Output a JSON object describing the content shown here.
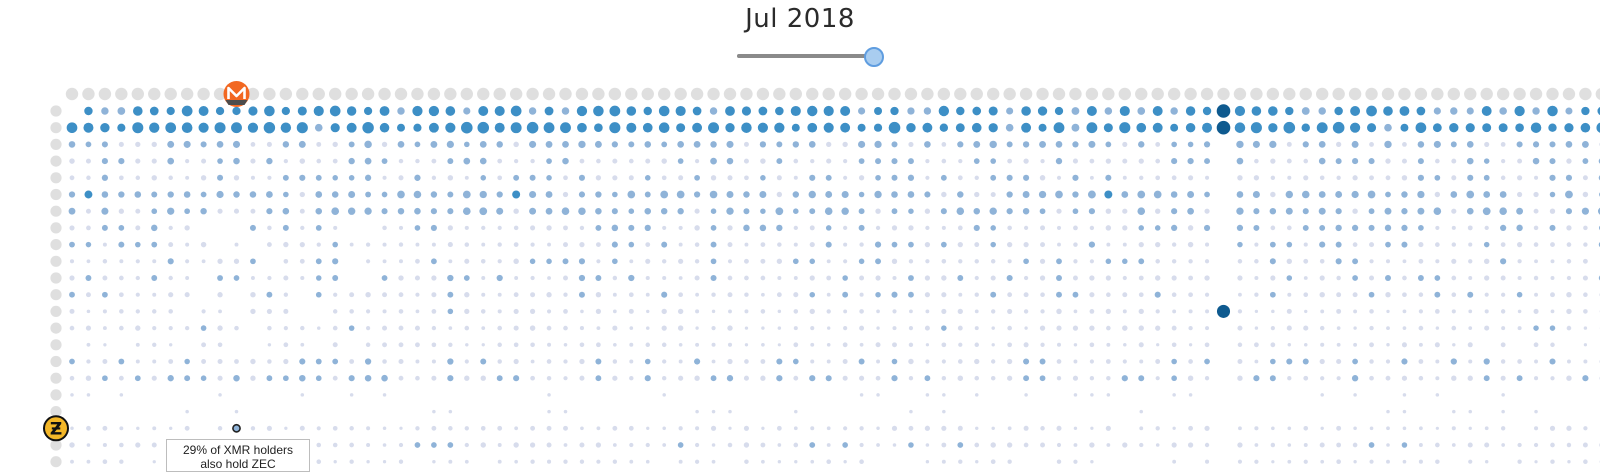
{
  "title": "Jul 2018",
  "slider": {
    "value_fraction": 1.0
  },
  "colors": {
    "background": "#ffffff",
    "low": "#d7dcec",
    "mid": "#8fb3d8",
    "high": "#3d8fc6",
    "max": "#0e5a8f",
    "highlight_xmr": "#f26822",
    "highlight_zec": "#f4b728",
    "icon_gray": "#c4c4c4"
  },
  "tooltip": {
    "line1": "29% of XMR holders",
    "line2": "also hold ZEC"
  },
  "chart_data": {
    "type": "heatmap",
    "encoding": "circle size and color = share of column-coin holders who also hold row coin",
    "columns": 96,
    "rows": 22,
    "highlight": {
      "column_coin": "XMR",
      "row_coin": "ZEC",
      "value_percent": 29
    },
    "row_icons": [
      "bitcoin-icon",
      "ethereum-icon",
      "xrp-icon",
      "bitcoin-cash-icon",
      "litecoin-icon",
      "stellar-icon",
      "ethereum-classic-icon",
      "tether-icon",
      "binance-icon",
      "gear-icon",
      "monero-icon",
      "nem-icon",
      "dash-icon",
      "ethereum-icon",
      "coin-icon",
      "binance-icon",
      "shield-icon",
      "chevron-icon",
      "tezos-icon",
      "zcash-icon",
      "coin-icon",
      "drop-icon"
    ]
  }
}
